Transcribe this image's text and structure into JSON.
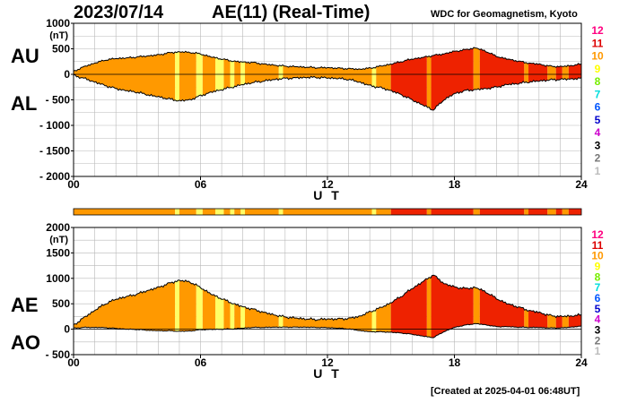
{
  "header": {
    "date": "2023/07/14",
    "title": "AE(11) (Real-Time)",
    "source": "WDC for Geomagnetism, Kyoto"
  },
  "footer": {
    "created": "[Created at 2025-04-01 06:48UT]"
  },
  "panel_labels": {
    "upper": "AU",
    "lower": "AL",
    "ae": "AE",
    "ao": "AO"
  },
  "colors": {
    "fill_levels": {
      "9": "#ffff66",
      "10": "#ff9900",
      "11": "#ee2200"
    },
    "legend": [
      "#ff0080",
      "#dd0000",
      "#ff9900",
      "#ffff00",
      "#77ee00",
      "#00dddd",
      "#0055ff",
      "#0000cc",
      "#cc00cc",
      "#000000",
      "#777777",
      "#bbbbbb"
    ]
  },
  "chart_data": [
    {
      "type": "area",
      "panel": "AU/AL",
      "xlabel": "U T",
      "ylabel": "(nT)",
      "xlim": [
        0,
        24
      ],
      "ylim": [
        -2000,
        1000
      ],
      "xticks": [
        "00",
        "06",
        "12",
        "18",
        "24"
      ],
      "yticks": [
        "1000",
        "500",
        "0",
        "- 500",
        "- 1000",
        "- 1500",
        "- 2000"
      ],
      "legend_labels": [
        "12",
        "11",
        "10",
        "9",
        "8",
        "7",
        "6",
        "5",
        "4",
        "3",
        "2",
        "1"
      ],
      "series": [
        {
          "name": "AU",
          "x": [
            0,
            0.5,
            1,
            1.5,
            2,
            2.5,
            3,
            3.5,
            4,
            4.5,
            5,
            5.5,
            6,
            6.5,
            7,
            7.5,
            8,
            8.5,
            9,
            9.5,
            10,
            10.5,
            11,
            11.5,
            12,
            12.5,
            13,
            13.5,
            14,
            14.5,
            15,
            15.5,
            16,
            16.5,
            17,
            17.5,
            18,
            18.5,
            19,
            19.5,
            20,
            20.5,
            21,
            21.5,
            22,
            22.5,
            23,
            23.5,
            24
          ],
          "values": [
            60,
            150,
            220,
            280,
            310,
            320,
            340,
            360,
            380,
            420,
            440,
            430,
            400,
            340,
            300,
            260,
            240,
            230,
            200,
            180,
            160,
            150,
            140,
            130,
            130,
            120,
            110,
            100,
            120,
            160,
            200,
            250,
            300,
            330,
            370,
            400,
            450,
            480,
            520,
            450,
            350,
            300,
            260,
            220,
            200,
            160,
            150,
            170,
            200
          ]
        },
        {
          "name": "AL",
          "x": [
            0,
            0.5,
            1,
            1.5,
            2,
            2.5,
            3,
            3.5,
            4,
            4.5,
            5,
            5.5,
            6,
            6.5,
            7,
            7.5,
            8,
            8.5,
            9,
            9.5,
            10,
            10.5,
            11,
            11.5,
            12,
            12.5,
            13,
            13.5,
            14,
            14.5,
            15,
            15.5,
            16,
            16.5,
            17,
            17.5,
            18,
            18.5,
            19,
            19.5,
            20,
            20.5,
            21,
            21.5,
            22,
            22.5,
            23,
            23.5,
            24
          ],
          "values": [
            -20,
            -80,
            -150,
            -220,
            -280,
            -320,
            -350,
            -400,
            -440,
            -480,
            -520,
            -500,
            -420,
            -350,
            -300,
            -250,
            -200,
            -160,
            -130,
            -100,
            -80,
            -70,
            -60,
            -60,
            -70,
            -80,
            -100,
            -150,
            -220,
            -260,
            -320,
            -400,
            -500,
            -600,
            -700,
            -500,
            -380,
            -320,
            -300,
            -280,
            -250,
            -200,
            -180,
            -150,
            -130,
            -110,
            -100,
            -90,
            -80
          ]
        }
      ]
    },
    {
      "type": "area",
      "panel": "AE/AO",
      "xlabel": "U T",
      "ylabel": "(nT)",
      "xlim": [
        0,
        24
      ],
      "ylim": [
        -500,
        2000
      ],
      "xticks": [
        "00",
        "06",
        "12",
        "18",
        "24"
      ],
      "yticks": [
        "2000",
        "1500",
        "1000",
        "500",
        "0",
        "- 500"
      ],
      "legend_labels": [
        "12",
        "11",
        "10",
        "9",
        "8",
        "7",
        "6",
        "5",
        "4",
        "3",
        "2",
        "1"
      ],
      "series": [
        {
          "name": "AE",
          "x": [
            0,
            0.5,
            1,
            1.5,
            2,
            2.5,
            3,
            3.5,
            4,
            4.5,
            5,
            5.5,
            6,
            6.5,
            7,
            7.5,
            8,
            8.5,
            9,
            9.5,
            10,
            10.5,
            11,
            11.5,
            12,
            12.5,
            13,
            13.5,
            14,
            14.5,
            15,
            15.5,
            16,
            16.5,
            17,
            17.5,
            18,
            18.5,
            19,
            19.5,
            20,
            20.5,
            21,
            21.5,
            22,
            22.5,
            23,
            23.5,
            24
          ],
          "values": [
            80,
            230,
            370,
            500,
            590,
            640,
            690,
            760,
            820,
            900,
            960,
            930,
            820,
            690,
            600,
            510,
            440,
            390,
            330,
            280,
            240,
            220,
            200,
            190,
            200,
            200,
            210,
            250,
            340,
            420,
            520,
            650,
            800,
            930,
            1070,
            900,
            830,
            800,
            820,
            730,
            600,
            500,
            440,
            370,
            330,
            270,
            250,
            260,
            280
          ]
        },
        {
          "name": "AO",
          "x": [
            0,
            0.5,
            1,
            1.5,
            2,
            2.5,
            3,
            3.5,
            4,
            4.5,
            5,
            5.5,
            6,
            6.5,
            7,
            7.5,
            8,
            8.5,
            9,
            9.5,
            10,
            10.5,
            11,
            11.5,
            12,
            12.5,
            13,
            13.5,
            14,
            14.5,
            15,
            15.5,
            16,
            16.5,
            17,
            17.5,
            18,
            18.5,
            19,
            19.5,
            20,
            20.5,
            21,
            21.5,
            22,
            22.5,
            23,
            23.5,
            24
          ],
          "values": [
            20,
            35,
            35,
            30,
            15,
            0,
            -5,
            -20,
            -30,
            -30,
            -40,
            -35,
            -10,
            -5,
            0,
            5,
            20,
            35,
            35,
            40,
            40,
            40,
            40,
            35,
            30,
            20,
            5,
            -25,
            -50,
            -50,
            -60,
            -75,
            -100,
            -135,
            -165,
            -50,
            35,
            80,
            110,
            85,
            50,
            50,
            40,
            35,
            35,
            25,
            25,
            40,
            60
          ]
        }
      ]
    },
    {
      "type": "heatmap",
      "panel": "activity-level-bar",
      "xlim": [
        0,
        24
      ],
      "segments": [
        {
          "start": 0,
          "end": 4.8,
          "level": 10
        },
        {
          "start": 4.8,
          "end": 5.0,
          "level": 9
        },
        {
          "start": 5.0,
          "end": 5.8,
          "level": 10
        },
        {
          "start": 5.8,
          "end": 6.1,
          "level": 9
        },
        {
          "start": 6.1,
          "end": 6.7,
          "level": 10
        },
        {
          "start": 6.7,
          "end": 7.1,
          "level": 9
        },
        {
          "start": 7.1,
          "end": 7.4,
          "level": 10
        },
        {
          "start": 7.4,
          "end": 7.6,
          "level": 9
        },
        {
          "start": 7.6,
          "end": 7.9,
          "level": 10
        },
        {
          "start": 7.9,
          "end": 8.1,
          "level": 9
        },
        {
          "start": 8.1,
          "end": 9.7,
          "level": 10
        },
        {
          "start": 9.7,
          "end": 9.9,
          "level": 9
        },
        {
          "start": 9.9,
          "end": 14.1,
          "level": 10
        },
        {
          "start": 14.1,
          "end": 14.3,
          "level": 9
        },
        {
          "start": 14.3,
          "end": 15.0,
          "level": 10
        },
        {
          "start": 15.0,
          "end": 16.7,
          "level": 11
        },
        {
          "start": 16.7,
          "end": 16.9,
          "level": 10
        },
        {
          "start": 16.9,
          "end": 18.9,
          "level": 11
        },
        {
          "start": 18.9,
          "end": 19.2,
          "level": 10
        },
        {
          "start": 19.2,
          "end": 21.3,
          "level": 11
        },
        {
          "start": 21.3,
          "end": 21.5,
          "level": 10
        },
        {
          "start": 21.5,
          "end": 22.4,
          "level": 11
        },
        {
          "start": 22.4,
          "end": 22.8,
          "level": 10
        },
        {
          "start": 22.8,
          "end": 23.1,
          "level": 11
        },
        {
          "start": 23.1,
          "end": 23.4,
          "level": 10
        },
        {
          "start": 23.4,
          "end": 24,
          "level": 11
        }
      ]
    }
  ]
}
